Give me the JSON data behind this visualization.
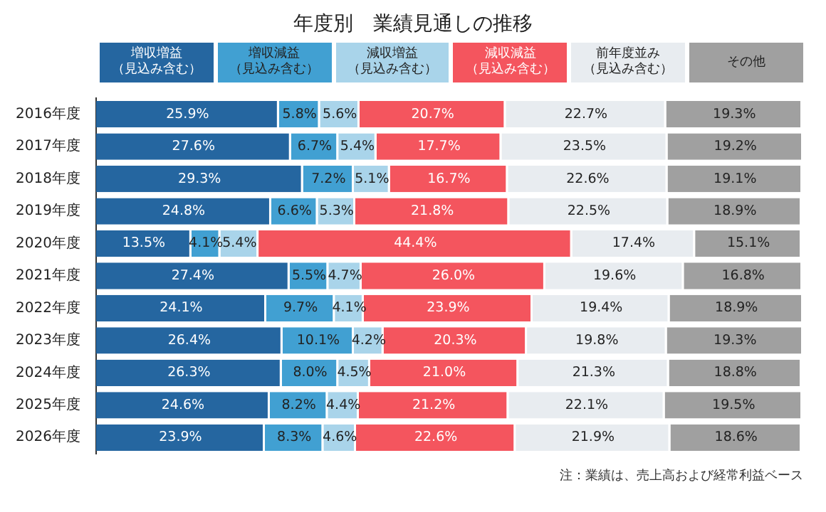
{
  "chart_data": {
    "type": "bar",
    "title": "年度別　業績見通しの推移",
    "orientation": "horizontal",
    "stacked": true,
    "legend": "top",
    "tick_labels": "y",
    "categories": [
      "2016年度",
      "2017年度",
      "2018年度",
      "2019年度",
      "2020年度",
      "2021年度",
      "2022年度",
      "2023年度",
      "2024年度",
      "2025年度",
      "2026年度"
    ],
    "series": [
      {
        "name": "増収増益（見込み含む）",
        "color": "#2566a0",
        "values": [
          25.9,
          27.6,
          29.3,
          24.8,
          13.5,
          27.4,
          24.1,
          26.4,
          26.3,
          24.6,
          23.9
        ],
        "value_labels": [
          "25.9%",
          "27.6%",
          "29.3%",
          "24.8%",
          "13.5%",
          "27.4%",
          "24.1%",
          "26.4%",
          "26.3%",
          "24.6%",
          "23.9%"
        ]
      },
      {
        "name": "増収減益（見込み含む）",
        "color": "#41a0d2",
        "values": [
          5.8,
          6.7,
          7.2,
          6.6,
          4.1,
          5.5,
          9.7,
          10.1,
          8.0,
          8.2,
          8.3
        ],
        "value_labels": [
          "5.8%",
          "6.7%",
          "7.2%",
          "6.6%",
          "4.1%",
          "5.5%",
          "9.7%",
          "10.1%",
          "8.0%",
          "8.2%",
          "8.3%"
        ]
      },
      {
        "name": "減収増益（見込み含む）",
        "color": "#a9d4ea",
        "values": [
          5.6,
          5.4,
          5.1,
          5.3,
          5.4,
          4.7,
          4.1,
          4.2,
          4.5,
          4.4,
          4.6
        ],
        "value_labels": [
          "5.6%",
          "5.4%",
          "5.1%",
          "5.3%",
          "5.4%",
          "4.7%",
          "4.1%",
          "4.2%",
          "4.5%",
          "4.4%",
          "4.6%"
        ]
      },
      {
        "name": "減収減益（見込み含む）",
        "color": "#f4555e",
        "values": [
          20.7,
          17.7,
          16.7,
          21.8,
          44.4,
          26.0,
          23.9,
          20.3,
          21.0,
          21.2,
          22.6
        ],
        "value_labels": [
          "20.7%",
          "17.7%",
          "16.7%",
          "21.8%",
          "44.4%",
          "26.0%",
          "23.9%",
          "20.3%",
          "21.0%",
          "21.2%",
          "22.6%"
        ]
      },
      {
        "name": "前年度並み（見込み含む）",
        "color": "#e8ecf0",
        "values": [
          22.7,
          23.5,
          22.6,
          22.5,
          17.4,
          19.6,
          19.4,
          19.8,
          21.3,
          22.1,
          21.9
        ],
        "value_labels": [
          "22.7%",
          "23.5%",
          "22.6%",
          "22.5%",
          "17.4%",
          "19.6%",
          "19.4%",
          "19.8%",
          "21.3%",
          "22.1%",
          "21.9%"
        ]
      },
      {
        "name": "その他",
        "color": "#a0a0a0",
        "values": [
          19.3,
          19.2,
          19.1,
          18.9,
          15.1,
          16.8,
          18.9,
          19.3,
          18.8,
          19.5,
          18.6
        ],
        "value_labels": [
          "19.3%",
          "19.2%",
          "19.1%",
          "18.9%",
          "15.1%",
          "16.8%",
          "18.9%",
          "19.3%",
          "18.8%",
          "19.5%",
          "18.6%"
        ]
      }
    ],
    "annotations": [
      "注：業績は、売上高および経常利益ベース"
    ]
  }
}
